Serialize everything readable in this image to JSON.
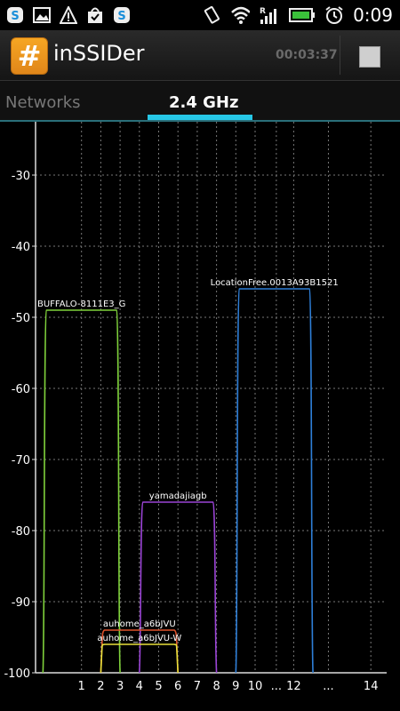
{
  "status_bar": {
    "time": "0:09",
    "icons": [
      "skype-icon",
      "image-icon",
      "alert-icon",
      "shopping-bag-icon",
      "skype-icon",
      "vibrate-icon",
      "wifi-icon",
      "roaming-signal-icon",
      "battery-icon",
      "alarm-icon"
    ],
    "roaming_mark": "R"
  },
  "app_bar": {
    "title": "inSSIDer",
    "elapsed": "00:03:37",
    "app_icon_glyph": "#"
  },
  "tabs": {
    "networks": "Networks",
    "band": "2.4 GHz"
  },
  "chart_data": {
    "type": "area",
    "ylim": [
      -100,
      -20
    ],
    "yticks": [
      {
        "value": -30,
        "label": "-30"
      },
      {
        "value": -40,
        "label": "-40"
      },
      {
        "value": -50,
        "label": "-50"
      },
      {
        "value": -60,
        "label": "-60"
      },
      {
        "value": -70,
        "label": "-70"
      },
      {
        "value": -80,
        "label": "-80"
      },
      {
        "value": -90,
        "label": "-90"
      },
      {
        "value": -100,
        "label": "-100"
      }
    ],
    "xticks": [
      {
        "ch": 1,
        "label": "1"
      },
      {
        "ch": 2,
        "label": "2"
      },
      {
        "ch": 3,
        "label": "3"
      },
      {
        "ch": 4,
        "label": "4"
      },
      {
        "ch": 5,
        "label": "5"
      },
      {
        "ch": 6,
        "label": "6"
      },
      {
        "ch": 7,
        "label": "7"
      },
      {
        "ch": 8,
        "label": "8"
      },
      {
        "ch": 9,
        "label": "9"
      },
      {
        "ch": 10,
        "label": "10"
      },
      {
        "ch": 11.1,
        "label": "..."
      },
      {
        "ch": 12,
        "label": "12"
      },
      {
        "ch": 13.8,
        "label": "..."
      },
      {
        "ch": 16,
        "label": "14"
      }
    ],
    "networks": [
      {
        "ssid": "BUFFALO-8111E3_G",
        "channel": 1,
        "rssi": -49,
        "color": "#7fd13b"
      },
      {
        "ssid": "LocationFree.0013A93B1521",
        "channel": 11,
        "rssi": -46,
        "color": "#2e7fd8"
      },
      {
        "ssid": "yamadajiagb",
        "channel": 6,
        "rssi": -76,
        "color": "#9b44d6"
      },
      {
        "ssid": "auhome_a6bJVU",
        "channel": 4,
        "rssi": -94,
        "color": "#e0522a"
      },
      {
        "ssid": "auhome_a6bJVU-W",
        "channel": 4,
        "rssi": -96,
        "color": "#e8e03a"
      }
    ]
  }
}
